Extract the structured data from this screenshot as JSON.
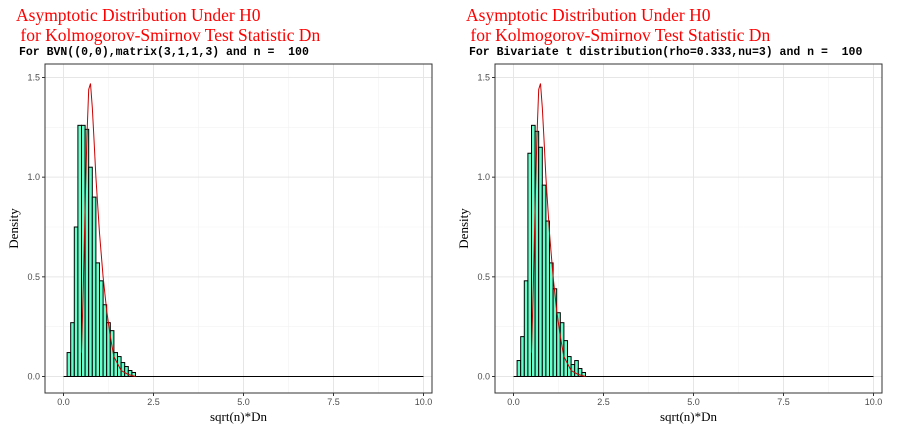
{
  "chart_data": [
    {
      "type": "histogram",
      "title_line1": "Asymptotic Distribution Under H0",
      "title_line2": " for Kolmogorov-Smirnov Test Statistic Dn",
      "subtitle": "For BVN((0,0),matrix(3,1,1,3) and n =  100",
      "xlabel": "sqrt(n)*Dn",
      "ylabel": "Density",
      "xlim": [
        0,
        10
      ],
      "ylim": [
        0,
        1.5
      ],
      "xticks": [
        "0.0",
        "2.5",
        "5.0",
        "7.5",
        "10.0"
      ],
      "yticks": [
        "0.0",
        "0.5",
        "1.0",
        "1.5"
      ],
      "grid": true,
      "bin_width": 0.1,
      "bins_start": [
        0.1,
        0.2,
        0.3,
        0.4,
        0.5,
        0.6,
        0.7,
        0.8,
        0.9,
        1.0,
        1.1,
        1.2,
        1.3,
        1.4,
        1.5,
        1.6,
        1.7,
        1.8,
        1.9
      ],
      "densities": [
        0.12,
        0.27,
        0.75,
        1.26,
        1.26,
        1.24,
        1.05,
        0.9,
        0.57,
        0.48,
        0.36,
        0.27,
        0.23,
        0.12,
        0.1,
        0.07,
        0.05,
        0.03,
        0.02
      ],
      "curve": {
        "x": [
          0.5,
          0.55,
          0.6,
          0.65,
          0.7,
          0.75,
          0.8,
          0.85,
          0.9,
          1.0,
          1.1,
          1.2,
          1.3,
          1.4,
          1.6,
          1.8,
          2.0
        ],
        "y": [
          0.12,
          0.45,
          0.85,
          1.2,
          1.44,
          1.47,
          1.35,
          1.18,
          1.0,
          0.72,
          0.5,
          0.33,
          0.2,
          0.1,
          0.03,
          0.01,
          0.0
        ]
      },
      "colors": {
        "fill": "#66ffcc",
        "curve": "#cc0000",
        "title": "#ff0000"
      }
    },
    {
      "type": "histogram",
      "title_line1": "Asymptotic Distribution Under H0",
      "title_line2": " for Kolmogorov-Smirnov Test Statistic Dn",
      "subtitle": "For Bivariate t distribution(rho=0.333,nu=3) and n =  100",
      "xlabel": "sqrt(n)*Dn",
      "ylabel": "Density",
      "xlim": [
        0,
        10
      ],
      "ylim": [
        0,
        1.5
      ],
      "xticks": [
        "0.0",
        "2.5",
        "5.0",
        "7.5",
        "10.0"
      ],
      "yticks": [
        "0.0",
        "0.5",
        "1.0",
        "1.5"
      ],
      "grid": true,
      "bin_width": 0.1,
      "bins_start": [
        0.1,
        0.2,
        0.3,
        0.4,
        0.5,
        0.6,
        0.7,
        0.8,
        0.9,
        1.0,
        1.1,
        1.2,
        1.3,
        1.4,
        1.5,
        1.6,
        1.7,
        1.8,
        1.9
      ],
      "densities": [
        0.08,
        0.2,
        0.48,
        1.12,
        1.26,
        1.23,
        1.15,
        0.96,
        0.78,
        0.57,
        0.44,
        0.32,
        0.27,
        0.18,
        0.1,
        0.06,
        0.08,
        0.04,
        0.02
      ],
      "curve": {
        "x": [
          0.5,
          0.55,
          0.6,
          0.65,
          0.7,
          0.75,
          0.8,
          0.85,
          0.9,
          1.0,
          1.1,
          1.2,
          1.3,
          1.4,
          1.6,
          1.8,
          2.0
        ],
        "y": [
          0.12,
          0.45,
          0.85,
          1.2,
          1.44,
          1.47,
          1.35,
          1.18,
          1.0,
          0.72,
          0.5,
          0.33,
          0.2,
          0.1,
          0.03,
          0.01,
          0.0
        ]
      },
      "colors": {
        "fill": "#66ffcc",
        "curve": "#cc0000",
        "title": "#ff0000"
      }
    }
  ]
}
